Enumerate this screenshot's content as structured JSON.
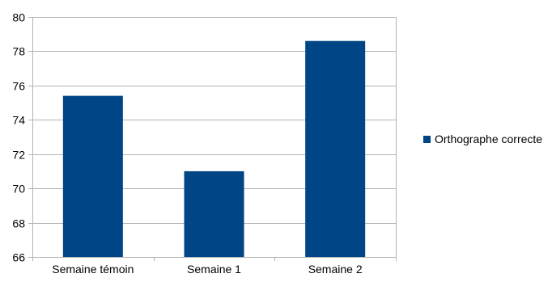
{
  "chart_data": {
    "type": "bar",
    "categories": [
      "Semaine témoin",
      "Semaine 1",
      "Semaine 2"
    ],
    "series": [
      {
        "name": "Orthographe correcte",
        "values": [
          75.4,
          71.0,
          78.6
        ],
        "color": "#004586"
      }
    ],
    "ylim": [
      66,
      80
    ],
    "yticks": [
      66,
      68,
      70,
      72,
      74,
      76,
      78,
      80
    ],
    "grid": true,
    "legend_position": "right",
    "title": "",
    "xlabel": "",
    "ylabel": ""
  }
}
